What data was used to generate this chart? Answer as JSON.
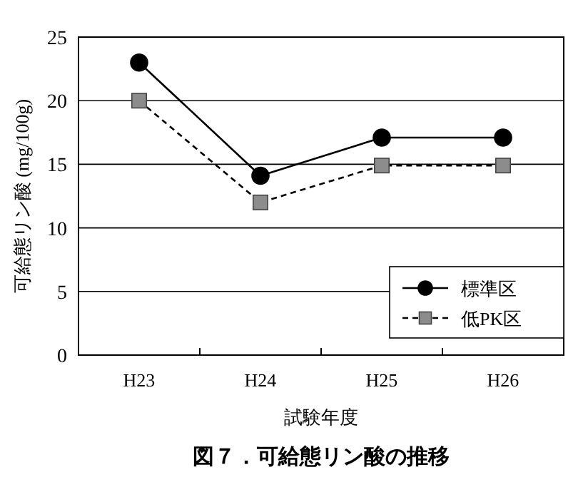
{
  "chart_data": {
    "type": "line",
    "title": "図７．可給態リン酸の推移",
    "xlabel": "試験年度",
    "ylabel": "可給態リン酸 (mg/100g)",
    "categories": [
      "H23",
      "H24",
      "H25",
      "H26"
    ],
    "series": [
      {
        "name": "標準区",
        "color": "#000000",
        "values": [
          23,
          14.1,
          17.1,
          17.1
        ],
        "marker": "circle",
        "line_style": "solid"
      },
      {
        "name": "低PK区",
        "color": "#8c8c8c",
        "values": [
          20,
          12,
          14.9,
          14.9
        ],
        "marker": "square",
        "line_style": "dashed"
      }
    ],
    "ylim": [
      0,
      25
    ],
    "yticks": [
      0,
      5,
      10,
      15,
      20,
      25
    ],
    "grid": "y",
    "legend": "bottom right"
  }
}
